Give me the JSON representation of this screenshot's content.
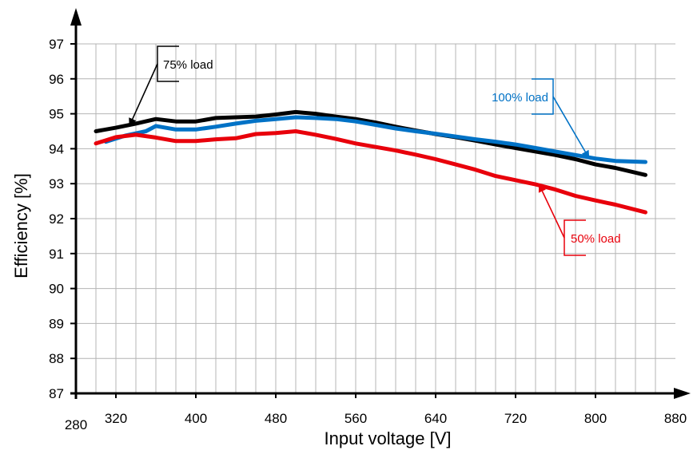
{
  "chart_data": {
    "type": "line",
    "title": "",
    "xlabel": "Input voltage [V]",
    "ylabel": "Efficiency [%]",
    "xlim": [
      280,
      880
    ],
    "ylim": [
      87,
      97
    ],
    "x_ticks": [
      "280",
      "320",
      "400",
      "480",
      "560",
      "640",
      "720",
      "800",
      "880"
    ],
    "y_ticks": [
      "87",
      "88",
      "89",
      "90",
      "91",
      "92",
      "93",
      "94",
      "95",
      "96",
      "97"
    ],
    "grid": true,
    "series": [
      {
        "name": "75% load",
        "color": "#000000",
        "x": [
          300,
          320,
          340,
          360,
          380,
          400,
          420,
          440,
          460,
          480,
          500,
          520,
          540,
          560,
          580,
          600,
          620,
          640,
          660,
          680,
          700,
          720,
          740,
          760,
          780,
          800,
          820,
          850
        ],
        "y": [
          94.5,
          94.6,
          94.72,
          94.85,
          94.78,
          94.78,
          94.88,
          94.9,
          94.92,
          94.98,
          95.05,
          95.0,
          94.92,
          94.85,
          94.75,
          94.63,
          94.52,
          94.42,
          94.33,
          94.23,
          94.12,
          94.02,
          93.92,
          93.82,
          93.7,
          93.55,
          93.45,
          93.25
        ]
      },
      {
        "name": "100% load",
        "color": "#0072C6",
        "x": [
          310,
          330,
          350,
          360,
          380,
          400,
          420,
          440,
          460,
          480,
          500,
          520,
          540,
          560,
          580,
          600,
          620,
          640,
          660,
          680,
          700,
          720,
          740,
          760,
          780,
          800,
          820,
          850
        ],
        "y": [
          94.2,
          94.38,
          94.5,
          94.65,
          94.55,
          94.55,
          94.63,
          94.72,
          94.8,
          94.85,
          94.9,
          94.88,
          94.85,
          94.78,
          94.68,
          94.58,
          94.5,
          94.43,
          94.35,
          94.27,
          94.2,
          94.12,
          94.02,
          93.92,
          93.82,
          93.72,
          93.65,
          93.62
        ]
      },
      {
        "name": "50% load",
        "color": "#E8000B",
        "x": [
          300,
          320,
          340,
          360,
          380,
          400,
          420,
          440,
          460,
          480,
          500,
          520,
          540,
          560,
          580,
          600,
          620,
          640,
          660,
          680,
          700,
          720,
          740,
          760,
          780,
          800,
          820,
          850
        ],
        "y": [
          94.15,
          94.33,
          94.4,
          94.32,
          94.22,
          94.22,
          94.27,
          94.3,
          94.42,
          94.45,
          94.5,
          94.4,
          94.28,
          94.15,
          94.05,
          93.95,
          93.83,
          93.7,
          93.55,
          93.4,
          93.22,
          93.1,
          92.98,
          92.83,
          92.65,
          92.52,
          92.4,
          92.18
        ]
      }
    ],
    "annotations": [
      {
        "text": "75% load",
        "color": "#000000",
        "series": 0
      },
      {
        "text": "100% load",
        "color": "#0072C6",
        "series": 1
      },
      {
        "text": "50% load",
        "color": "#E8000B",
        "series": 2
      }
    ]
  }
}
